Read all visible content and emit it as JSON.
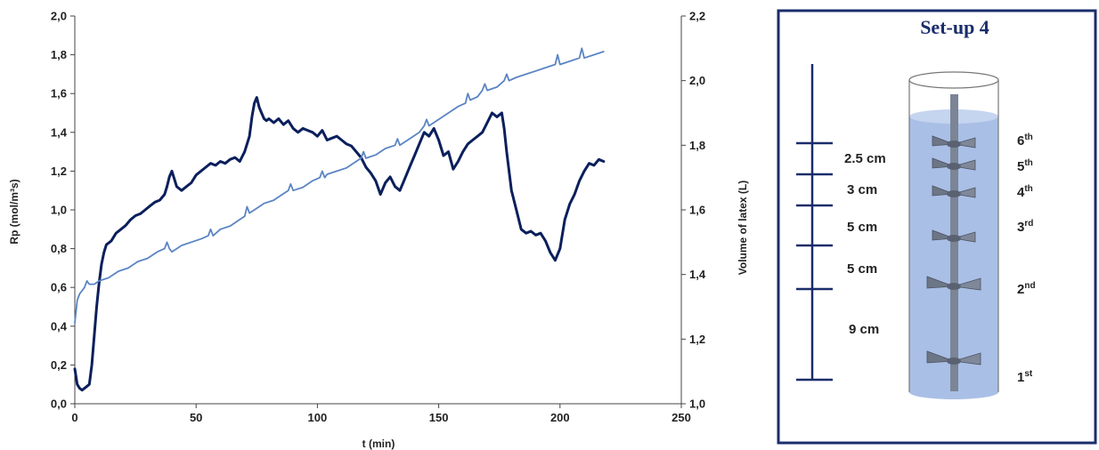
{
  "chart_data": {
    "type": "line",
    "xlabel": "t (min)",
    "ylabel": "Rp (mol/m³s)",
    "y2label": "Volume of latex (L)",
    "xlim": [
      0,
      250
    ],
    "ylim": [
      0,
      2.0
    ],
    "y2lim": [
      1.0,
      2.2
    ],
    "x_ticks": [
      "0",
      "50",
      "100",
      "150",
      "200",
      "250"
    ],
    "y_ticks": [
      "0,0",
      "0,2",
      "0,4",
      "0,6",
      "0,8",
      "1,0",
      "1,2",
      "1,4",
      "1,6",
      "1,8",
      "2,0"
    ],
    "y2_ticks": [
      "1,0",
      "1,2",
      "1,4",
      "1,6",
      "1,8",
      "2,0",
      "2,2"
    ],
    "grid": false,
    "series": [
      {
        "axis": "left",
        "color": "#0b1f5c",
        "x": [
          0,
          1,
          2,
          3,
          4,
          5,
          6,
          7,
          8,
          9,
          10,
          11,
          12,
          13,
          15,
          17,
          19,
          21,
          23,
          25,
          27,
          29,
          31,
          33,
          35,
          37,
          38,
          39,
          40,
          41,
          42,
          44,
          46,
          48,
          50,
          52,
          54,
          56,
          58,
          60,
          62,
          64,
          66,
          68,
          70,
          72,
          73,
          74,
          75,
          76,
          77,
          78,
          79,
          80,
          82,
          84,
          86,
          88,
          90,
          92,
          94,
          96,
          98,
          100,
          102,
          104,
          106,
          108,
          110,
          112,
          114,
          116,
          118,
          120,
          122,
          124,
          126,
          128,
          130,
          132,
          134,
          136,
          138,
          140,
          142,
          144,
          146,
          148,
          150,
          152,
          154,
          156,
          158,
          160,
          162,
          164,
          166,
          168,
          170,
          172,
          174,
          176,
          177,
          178,
          180,
          182,
          184,
          186,
          188,
          190,
          192,
          194,
          196,
          198,
          200,
          202,
          204,
          206,
          208,
          210,
          212,
          214,
          216,
          218
        ],
        "values": [
          0.18,
          0.1,
          0.08,
          0.07,
          0.08,
          0.09,
          0.1,
          0.2,
          0.35,
          0.5,
          0.62,
          0.72,
          0.78,
          0.82,
          0.84,
          0.88,
          0.9,
          0.92,
          0.95,
          0.97,
          0.98,
          1.0,
          1.02,
          1.04,
          1.05,
          1.08,
          1.12,
          1.17,
          1.2,
          1.16,
          1.12,
          1.1,
          1.12,
          1.14,
          1.18,
          1.2,
          1.22,
          1.24,
          1.23,
          1.25,
          1.24,
          1.26,
          1.27,
          1.25,
          1.3,
          1.38,
          1.48,
          1.55,
          1.58,
          1.53,
          1.5,
          1.47,
          1.46,
          1.47,
          1.45,
          1.47,
          1.44,
          1.46,
          1.42,
          1.4,
          1.42,
          1.41,
          1.4,
          1.38,
          1.41,
          1.36,
          1.37,
          1.38,
          1.36,
          1.34,
          1.33,
          1.3,
          1.27,
          1.22,
          1.19,
          1.15,
          1.08,
          1.14,
          1.17,
          1.12,
          1.1,
          1.16,
          1.22,
          1.28,
          1.34,
          1.4,
          1.38,
          1.42,
          1.36,
          1.28,
          1.3,
          1.21,
          1.25,
          1.3,
          1.34,
          1.36,
          1.38,
          1.4,
          1.45,
          1.5,
          1.48,
          1.5,
          1.42,
          1.3,
          1.1,
          1.0,
          0.9,
          0.88,
          0.89,
          0.87,
          0.88,
          0.84,
          0.78,
          0.74,
          0.8,
          0.95,
          1.03,
          1.08,
          1.15,
          1.2,
          1.24,
          1.23,
          1.26,
          1.25
        ]
      },
      {
        "axis": "right",
        "color": "#5b84c4",
        "x": [
          0,
          1,
          2,
          4,
          5,
          6,
          8,
          10,
          14,
          18,
          22,
          26,
          30,
          34,
          37,
          38,
          39,
          40,
          44,
          48,
          52,
          55,
          56,
          57,
          60,
          64,
          68,
          70,
          71,
          72,
          74,
          78,
          82,
          86,
          88,
          89,
          90,
          94,
          98,
          101,
          102,
          103,
          104,
          108,
          112,
          116,
          118,
          119,
          120,
          124,
          128,
          132,
          133,
          134,
          138,
          142,
          144,
          145,
          146,
          150,
          154,
          158,
          161,
          162,
          163,
          166,
          168,
          169,
          170,
          174,
          177,
          178,
          179,
          182,
          186,
          190,
          194,
          198,
          199,
          200,
          204,
          208,
          209,
          210,
          214,
          218
        ],
        "values": [
          1.25,
          1.32,
          1.34,
          1.36,
          1.38,
          1.37,
          1.37,
          1.38,
          1.39,
          1.41,
          1.42,
          1.44,
          1.45,
          1.47,
          1.48,
          1.5,
          1.48,
          1.47,
          1.49,
          1.5,
          1.51,
          1.52,
          1.54,
          1.52,
          1.54,
          1.55,
          1.57,
          1.58,
          1.61,
          1.59,
          1.6,
          1.62,
          1.63,
          1.65,
          1.66,
          1.68,
          1.66,
          1.67,
          1.69,
          1.7,
          1.72,
          1.7,
          1.71,
          1.72,
          1.73,
          1.75,
          1.76,
          1.78,
          1.76,
          1.77,
          1.79,
          1.8,
          1.82,
          1.8,
          1.82,
          1.84,
          1.86,
          1.88,
          1.86,
          1.88,
          1.9,
          1.92,
          1.93,
          1.96,
          1.94,
          1.95,
          1.97,
          1.99,
          1.97,
          1.98,
          2.0,
          2.02,
          2.0,
          2.01,
          2.02,
          2.03,
          2.04,
          2.05,
          2.08,
          2.05,
          2.06,
          2.07,
          2.1,
          2.07,
          2.08,
          2.09
        ]
      }
    ]
  },
  "setup": {
    "title": "Set-up 4",
    "measurements": [
      "2.5 cm",
      "3 cm",
      "5 cm",
      "5 cm",
      "9 cm"
    ],
    "impellers": [
      {
        "num": "6",
        "sup": "th"
      },
      {
        "num": "5",
        "sup": "th"
      },
      {
        "num": "4",
        "sup": "th"
      },
      {
        "num": "3",
        "sup": "rd"
      },
      {
        "num": "2",
        "sup": "nd"
      },
      {
        "num": "1",
        "sup": "st"
      }
    ],
    "colors": {
      "frame": "#1a2d6b",
      "liquid": "#a9bfe6",
      "vessel_outline": "#555555",
      "shaft": "#7b8595"
    }
  }
}
